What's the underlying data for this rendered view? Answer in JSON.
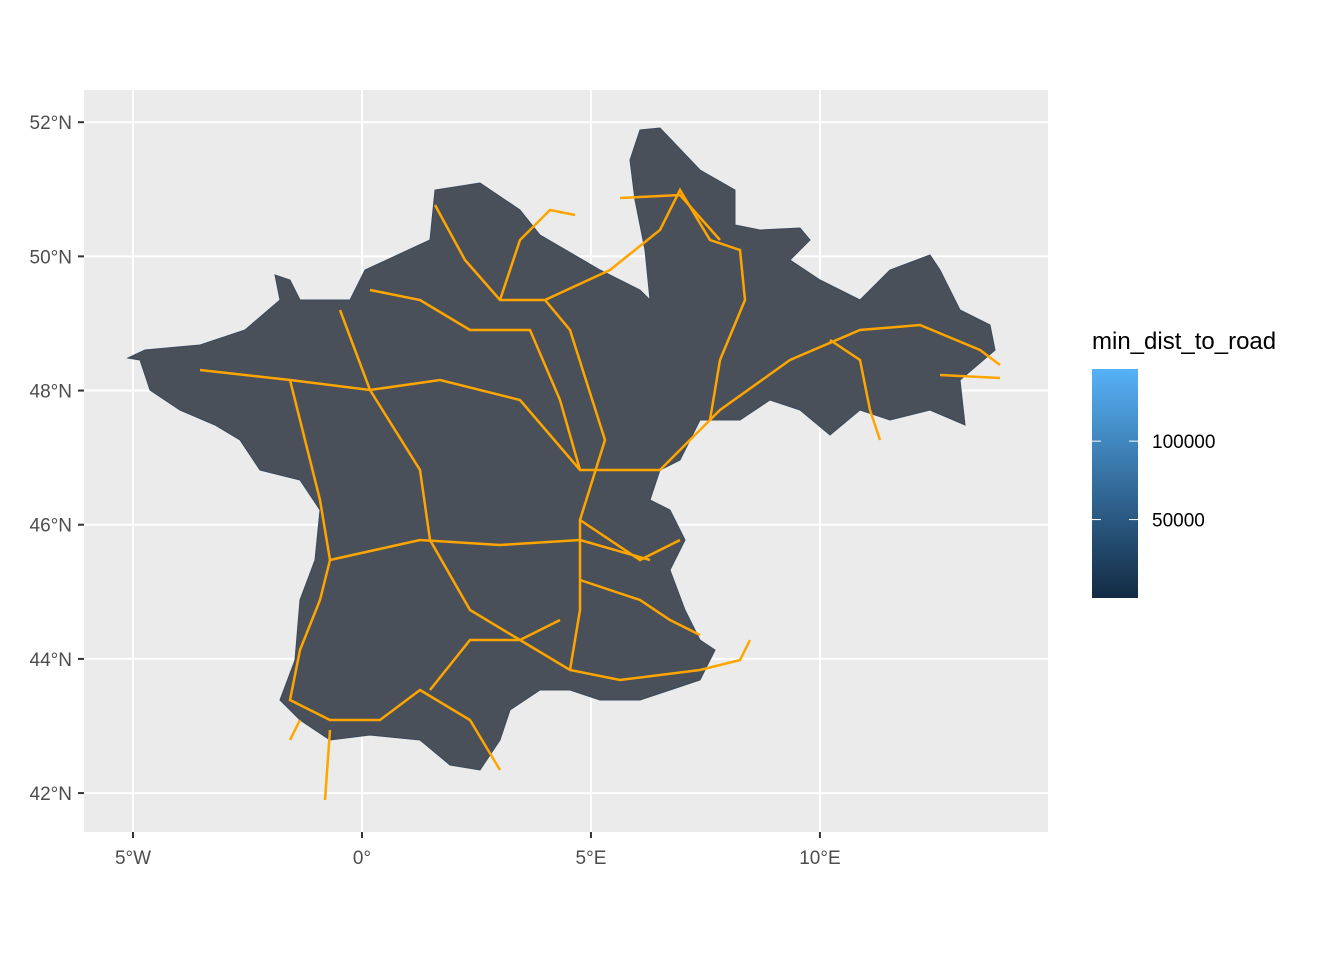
{
  "chart_data": {
    "type": "map",
    "xlim": [
      -6.07,
      14.98
    ],
    "ylim": [
      41.42,
      52.48
    ],
    "xticks": [
      {
        "value": -5,
        "label": "5°W"
      },
      {
        "value": 0,
        "label": "0°"
      },
      {
        "value": 5,
        "label": "5°E"
      },
      {
        "value": 10,
        "label": "10°E"
      }
    ],
    "yticks": [
      {
        "value": 42,
        "label": "42°N"
      },
      {
        "value": 44,
        "label": "44°N"
      },
      {
        "value": 46,
        "label": "46°N"
      },
      {
        "value": 48,
        "label": "48°N"
      },
      {
        "value": 50,
        "label": "50°N"
      },
      {
        "value": 52,
        "label": "52°N"
      }
    ],
    "grid": true,
    "legend": {
      "title": "min_dist_to_road",
      "lim": [
        0,
        146000
      ],
      "ticks": [
        50000,
        100000
      ],
      "colors": [
        "#132b43",
        "#56b1f7"
      ]
    },
    "road_color": "#ffa500"
  }
}
